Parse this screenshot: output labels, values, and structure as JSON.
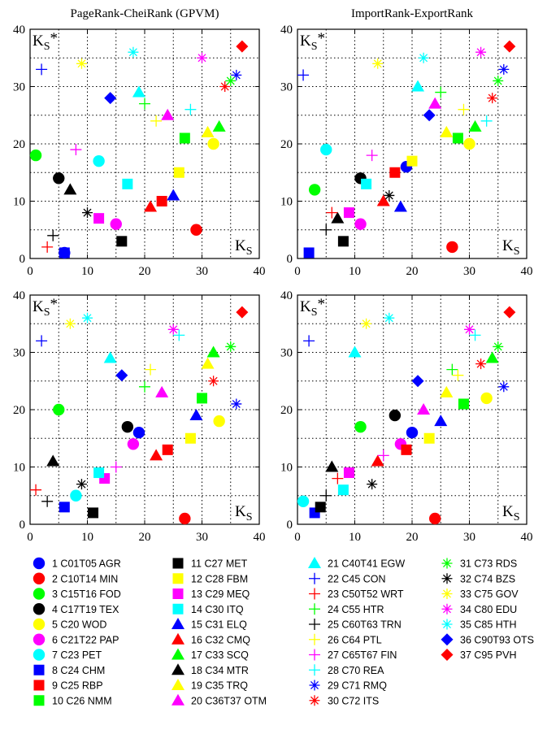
{
  "chart_data": [
    {
      "type": "scatter",
      "title": "PageRank-CheiRank (GPVM)",
      "xlabel": "K_S",
      "ylabel": "K_S*",
      "xlim": [
        0,
        40
      ],
      "ylim": [
        0,
        40
      ],
      "xticks": [
        0,
        10,
        20,
        30,
        40
      ],
      "yticks": [
        0,
        10,
        20,
        30,
        40
      ],
      "grid": true,
      "points": [
        [
          1,
          6,
          1
        ],
        [
          2,
          29,
          5
        ],
        [
          3,
          1,
          18
        ],
        [
          4,
          5,
          14
        ],
        [
          5,
          32,
          20
        ],
        [
          6,
          15,
          6
        ],
        [
          7,
          12,
          17
        ],
        [
          8,
          6,
          1
        ],
        [
          9,
          23,
          10
        ],
        [
          10,
          27,
          21
        ],
        [
          11,
          16,
          3
        ],
        [
          12,
          26,
          15
        ],
        [
          13,
          12,
          7
        ],
        [
          14,
          17,
          13
        ],
        [
          15,
          25,
          11
        ],
        [
          16,
          21,
          9
        ],
        [
          17,
          33,
          23
        ],
        [
          18,
          7,
          12
        ],
        [
          19,
          31,
          22
        ],
        [
          20,
          24,
          25
        ],
        [
          21,
          19,
          29
        ],
        [
          22,
          2,
          33
        ],
        [
          23,
          3,
          2
        ],
        [
          24,
          20,
          27
        ],
        [
          25,
          4,
          4
        ],
        [
          26,
          22,
          24
        ],
        [
          27,
          8,
          19
        ],
        [
          28,
          28,
          26
        ],
        [
          29,
          36,
          32
        ],
        [
          30,
          34,
          30
        ],
        [
          31,
          35,
          31
        ],
        [
          32,
          10,
          8
        ],
        [
          33,
          9,
          34
        ],
        [
          34,
          30,
          35
        ],
        [
          35,
          18,
          36
        ],
        [
          36,
          14,
          28
        ],
        [
          37,
          37,
          37
        ]
      ]
    },
    {
      "type": "scatter",
      "title": "ImportRank-ExportRank",
      "xlabel": "K_S",
      "ylabel": "K_S*",
      "xlim": [
        0,
        40
      ],
      "ylim": [
        0,
        40
      ],
      "xticks": [
        0,
        10,
        20,
        30,
        40
      ],
      "yticks": [
        0,
        10,
        20,
        30,
        40
      ],
      "grid": true,
      "points": [
        [
          1,
          19,
          16
        ],
        [
          2,
          27,
          2
        ],
        [
          3,
          3,
          12
        ],
        [
          4,
          11,
          14
        ],
        [
          5,
          30,
          20
        ],
        [
          6,
          11,
          6
        ],
        [
          7,
          5,
          19
        ],
        [
          8,
          2,
          1
        ],
        [
          9,
          17,
          15
        ],
        [
          10,
          28,
          21
        ],
        [
          11,
          8,
          3
        ],
        [
          12,
          20,
          17
        ],
        [
          13,
          9,
          8
        ],
        [
          14,
          12,
          13
        ],
        [
          15,
          18,
          9
        ],
        [
          16,
          15,
          10
        ],
        [
          17,
          31,
          23
        ],
        [
          18,
          7,
          7
        ],
        [
          19,
          26,
          22
        ],
        [
          20,
          24,
          27
        ],
        [
          21,
          21,
          30
        ],
        [
          22,
          1,
          32
        ],
        [
          23,
          6,
          8
        ],
        [
          24,
          25,
          29
        ],
        [
          25,
          5,
          5
        ],
        [
          26,
          29,
          26
        ],
        [
          27,
          13,
          18
        ],
        [
          28,
          33,
          24
        ],
        [
          29,
          36,
          33
        ],
        [
          30,
          34,
          28
        ],
        [
          31,
          35,
          31
        ],
        [
          32,
          16,
          11
        ],
        [
          33,
          14,
          34
        ],
        [
          34,
          32,
          36
        ],
        [
          35,
          22,
          35
        ],
        [
          36,
          23,
          25
        ],
        [
          37,
          37,
          37
        ]
      ]
    },
    {
      "type": "scatter",
      "title": "",
      "xlabel": "K_S",
      "ylabel": "K_S*",
      "xlim": [
        0,
        40
      ],
      "ylim": [
        0,
        40
      ],
      "xticks": [
        0,
        10,
        20,
        30,
        40
      ],
      "yticks": [
        0,
        10,
        20,
        30,
        40
      ],
      "grid": true,
      "points": [
        [
          1,
          19,
          16
        ],
        [
          2,
          27,
          1
        ],
        [
          3,
          5,
          20
        ],
        [
          4,
          17,
          17
        ],
        [
          5,
          33,
          18
        ],
        [
          6,
          18,
          14
        ],
        [
          7,
          8,
          5
        ],
        [
          8,
          6,
          3
        ],
        [
          9,
          24,
          13
        ],
        [
          10,
          30,
          22
        ],
        [
          11,
          11,
          2
        ],
        [
          12,
          28,
          15
        ],
        [
          13,
          13,
          8
        ],
        [
          14,
          12,
          9
        ],
        [
          15,
          29,
          19
        ],
        [
          16,
          22,
          12
        ],
        [
          17,
          32,
          30
        ],
        [
          18,
          4,
          11
        ],
        [
          19,
          31,
          28
        ],
        [
          20,
          23,
          23
        ],
        [
          21,
          14,
          29
        ],
        [
          22,
          2,
          32
        ],
        [
          23,
          1,
          6
        ],
        [
          24,
          20,
          24
        ],
        [
          25,
          3,
          4
        ],
        [
          26,
          21,
          27
        ],
        [
          27,
          15,
          10
        ],
        [
          28,
          26,
          33
        ],
        [
          29,
          36,
          21
        ],
        [
          30,
          32,
          25
        ],
        [
          31,
          35,
          31
        ],
        [
          32,
          9,
          7
        ],
        [
          33,
          7,
          35
        ],
        [
          34,
          25,
          34
        ],
        [
          35,
          10,
          36
        ],
        [
          36,
          16,
          26
        ],
        [
          37,
          37,
          37
        ]
      ]
    },
    {
      "type": "scatter",
      "title": "",
      "xlabel": "K_S",
      "ylabel": "K_S*",
      "xlim": [
        0,
        40
      ],
      "ylim": [
        0,
        40
      ],
      "xticks": [
        0,
        10,
        20,
        30,
        40
      ],
      "yticks": [
        0,
        10,
        20,
        30,
        40
      ],
      "grid": true,
      "points": [
        [
          1,
          20,
          16
        ],
        [
          2,
          24,
          1
        ],
        [
          3,
          11,
          17
        ],
        [
          4,
          17,
          19
        ],
        [
          5,
          33,
          22
        ],
        [
          6,
          18,
          14
        ],
        [
          7,
          1,
          4
        ],
        [
          8,
          3,
          2
        ],
        [
          9,
          19,
          13
        ],
        [
          10,
          29,
          21
        ],
        [
          11,
          4,
          3
        ],
        [
          12,
          23,
          15
        ],
        [
          13,
          9,
          9
        ],
        [
          14,
          8,
          6
        ],
        [
          15,
          25,
          18
        ],
        [
          16,
          14,
          11
        ],
        [
          17,
          34,
          29
        ],
        [
          18,
          6,
          10
        ],
        [
          19,
          26,
          23
        ],
        [
          20,
          22,
          20
        ],
        [
          21,
          10,
          30
        ],
        [
          22,
          2,
          32
        ],
        [
          23,
          7,
          8
        ],
        [
          24,
          27,
          27
        ],
        [
          25,
          5,
          5
        ],
        [
          26,
          28,
          26
        ],
        [
          27,
          15,
          12
        ],
        [
          28,
          31,
          33
        ],
        [
          29,
          36,
          24
        ],
        [
          30,
          32,
          28
        ],
        [
          31,
          35,
          31
        ],
        [
          32,
          13,
          7
        ],
        [
          33,
          12,
          35
        ],
        [
          34,
          30,
          34
        ],
        [
          35,
          16,
          36
        ],
        [
          36,
          21,
          25
        ],
        [
          37,
          37,
          37
        ]
      ]
    }
  ],
  "legend": [
    {
      "id": 1,
      "label": "1 C01T05 AGR",
      "marker": "circle",
      "color": "#0000ff"
    },
    {
      "id": 2,
      "label": "2 C10T14 MIN",
      "marker": "circle",
      "color": "#ff0000"
    },
    {
      "id": 3,
      "label": "3 C15T16 FOD",
      "marker": "circle",
      "color": "#00ff00"
    },
    {
      "id": 4,
      "label": "4 C17T19 TEX",
      "marker": "circle",
      "color": "#000000"
    },
    {
      "id": 5,
      "label": "5 C20 WOD",
      "marker": "circle",
      "color": "#ffff00"
    },
    {
      "id": 6,
      "label": "6 C21T22 PAP",
      "marker": "circle",
      "color": "#ff00ff"
    },
    {
      "id": 7,
      "label": "7 C23 PET",
      "marker": "circle",
      "color": "#00ffff"
    },
    {
      "id": 8,
      "label": "8 C24 CHM",
      "marker": "square",
      "color": "#0000ff"
    },
    {
      "id": 9,
      "label": "9 C25 RBP",
      "marker": "square",
      "color": "#ff0000"
    },
    {
      "id": 10,
      "label": "10 C26 NMM",
      "marker": "square",
      "color": "#00ff00"
    },
    {
      "id": 11,
      "label": "11 C27 MET",
      "marker": "square",
      "color": "#000000"
    },
    {
      "id": 12,
      "label": "12 C28 FBM",
      "marker": "square",
      "color": "#ffff00"
    },
    {
      "id": 13,
      "label": "13 C29 MEQ",
      "marker": "square",
      "color": "#ff00ff"
    },
    {
      "id": 14,
      "label": "14 C30 ITQ",
      "marker": "square",
      "color": "#00ffff"
    },
    {
      "id": 15,
      "label": "15 C31 ELQ",
      "marker": "triangle",
      "color": "#0000ff"
    },
    {
      "id": 16,
      "label": "16 C32 CMQ",
      "marker": "triangle",
      "color": "#ff0000"
    },
    {
      "id": 17,
      "label": "17 C33 SCQ",
      "marker": "triangle",
      "color": "#00ff00"
    },
    {
      "id": 18,
      "label": "18 C34 MTR",
      "marker": "triangle",
      "color": "#000000"
    },
    {
      "id": 19,
      "label": "19 C35 TRQ",
      "marker": "triangle",
      "color": "#ffff00"
    },
    {
      "id": 20,
      "label": "20 C36T37 OTM",
      "marker": "triangle",
      "color": "#ff00ff"
    },
    {
      "id": 21,
      "label": "21 C40T41 EGW",
      "marker": "triangle",
      "color": "#00ffff"
    },
    {
      "id": 22,
      "label": "22 C45 CON",
      "marker": "plus",
      "color": "#0000ff"
    },
    {
      "id": 23,
      "label": "23 C50T52 WRT",
      "marker": "plus",
      "color": "#ff0000"
    },
    {
      "id": 24,
      "label": "24 C55 HTR",
      "marker": "plus",
      "color": "#00ff00"
    },
    {
      "id": 25,
      "label": "25 C60T63 TRN",
      "marker": "plus",
      "color": "#000000"
    },
    {
      "id": 26,
      "label": "26 C64 PTL",
      "marker": "plus",
      "color": "#ffff00"
    },
    {
      "id": 27,
      "label": "27 C65T67 FIN",
      "marker": "plus",
      "color": "#ff00ff"
    },
    {
      "id": 28,
      "label": "28 C70 REA",
      "marker": "plus",
      "color": "#00ffff"
    },
    {
      "id": 29,
      "label": "29 C71 RMQ",
      "marker": "star",
      "color": "#0000ff"
    },
    {
      "id": 30,
      "label": "30 C72 ITS",
      "marker": "star",
      "color": "#ff0000"
    },
    {
      "id": 31,
      "label": "31 C73 RDS",
      "marker": "star",
      "color": "#00ff00"
    },
    {
      "id": 32,
      "label": "32 C74 BZS",
      "marker": "star",
      "color": "#000000"
    },
    {
      "id": 33,
      "label": "33 C75 GOV",
      "marker": "star",
      "color": "#ffff00"
    },
    {
      "id": 34,
      "label": "34 C80 EDU",
      "marker": "star",
      "color": "#ff00ff"
    },
    {
      "id": 35,
      "label": "35 C85 HTH",
      "marker": "star",
      "color": "#00ffff"
    },
    {
      "id": 36,
      "label": "36 C90T93 OTS",
      "marker": "diamond",
      "color": "#0000ff"
    },
    {
      "id": 37,
      "label": "37 C95 PVH",
      "marker": "diamond",
      "color": "#ff0000"
    }
  ]
}
